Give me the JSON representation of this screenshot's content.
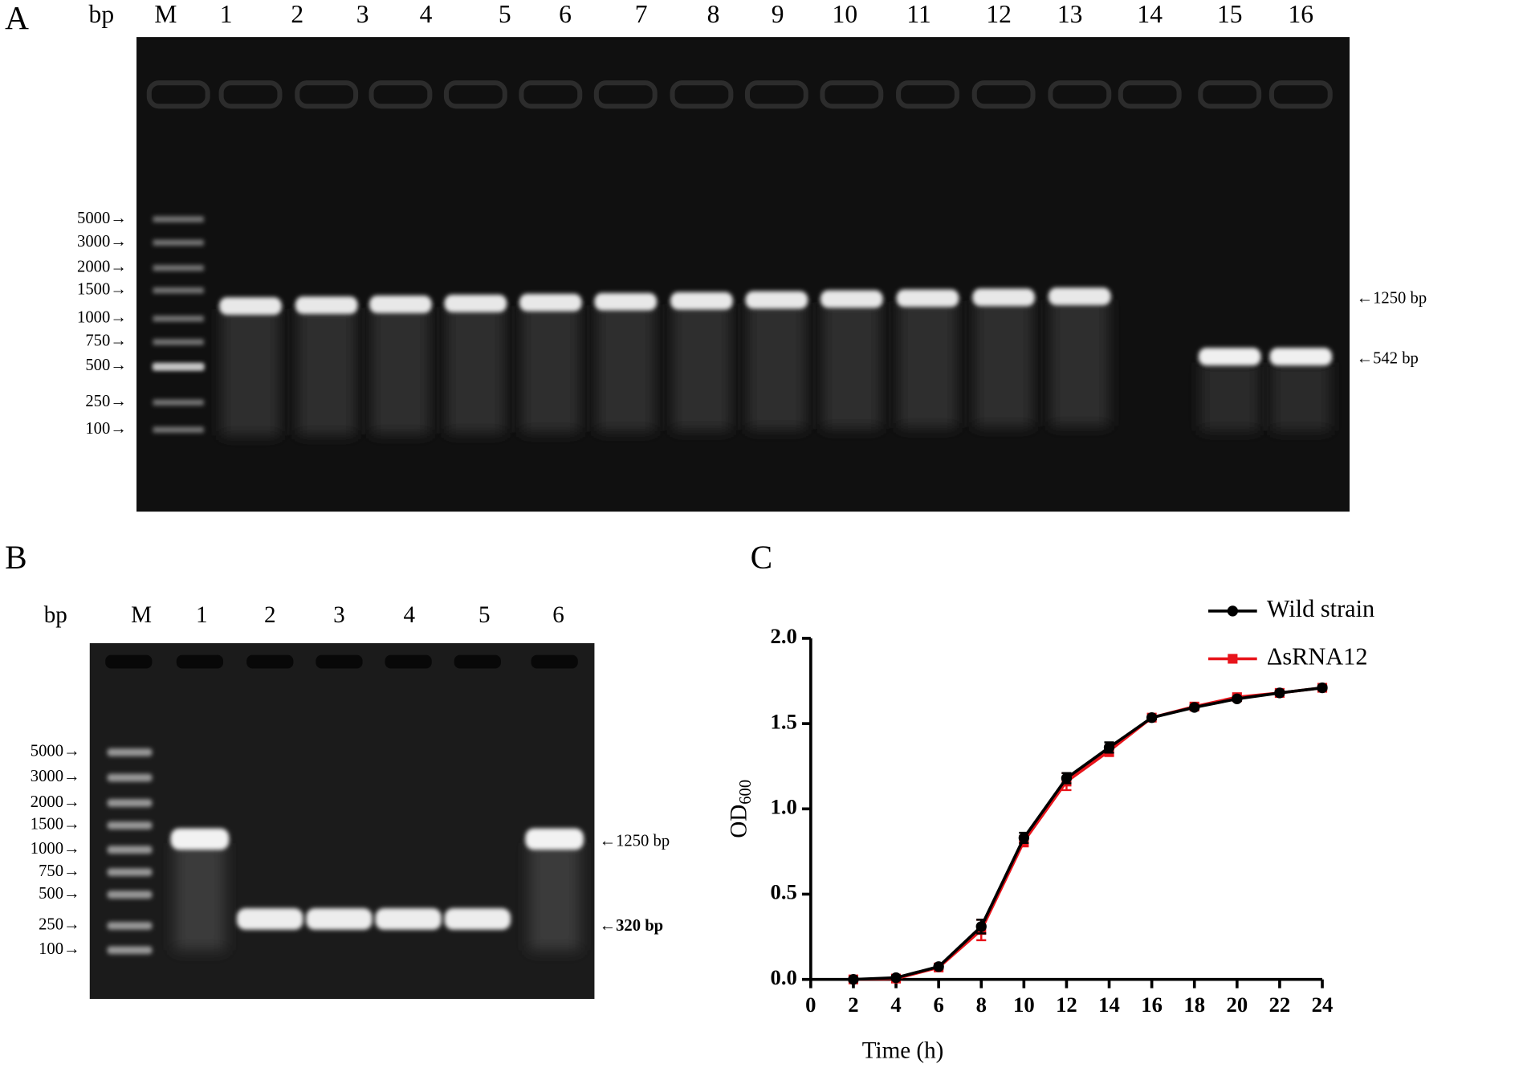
{
  "panel_a": {
    "label": "A",
    "unit": "bp",
    "lanes": [
      "M",
      "1",
      "2",
      "3",
      "4",
      "5",
      "6",
      "7",
      "8",
      "9",
      "10",
      "11",
      "12",
      "13",
      "14",
      "15",
      "16"
    ],
    "markers": [
      "5000→",
      "3000→",
      "2000→",
      "1500→",
      "1000→",
      "750→",
      "500→",
      "250→",
      "100→"
    ],
    "band_labels": [
      "←1250 bp",
      "←542 bp"
    ]
  },
  "panel_b": {
    "label": "B",
    "unit": "bp",
    "lanes": [
      "M",
      "1",
      "2",
      "3",
      "4",
      "5",
      "6"
    ],
    "markers": [
      "5000→",
      "3000→",
      "2000→",
      "1500→",
      "1000→",
      "750→",
      "500→",
      "250→",
      "100→"
    ],
    "band_labels": [
      "←1250 bp",
      "←320 bp"
    ]
  },
  "chart_data": {
    "type": "line",
    "label": "C",
    "xlabel": "Time (h)",
    "ylabel": {
      "main": "OD",
      "sub": "600"
    },
    "x": [
      2,
      4,
      6,
      8,
      10,
      12,
      14,
      16,
      18,
      20,
      22,
      24
    ],
    "xlim": [
      0,
      24
    ],
    "xticks": [
      0,
      2,
      4,
      6,
      8,
      10,
      12,
      14,
      16,
      18,
      20,
      22,
      24
    ],
    "ylim": [
      0,
      2
    ],
    "yticks": [
      {
        "value": 0,
        "label": "0.0"
      },
      0.5,
      {
        "value": 1,
        "label": "1.0"
      },
      1.5,
      {
        "value": 2,
        "label": "2.0"
      }
    ],
    "legend": "upper right",
    "series": [
      {
        "name": "Wild strain",
        "color": "#000000",
        "marker": "circle",
        "values": [
          0,
          0.01,
          0.075,
          0.31,
          0.83,
          1.18,
          1.36,
          1.535,
          1.595,
          1.645,
          1.68,
          1.71
        ],
        "errors": [
          0.01,
          0.01,
          0.01,
          0.04,
          0.03,
          0.03,
          0.03,
          0.01,
          0.01,
          0.01,
          0.01,
          0.01
        ]
      },
      {
        "name": "ΔsRNA12",
        "color": "#e8141b",
        "marker": "square",
        "values": [
          0,
          0.005,
          0.07,
          0.29,
          0.81,
          1.16,
          1.34,
          1.535,
          1.6,
          1.655,
          1.68,
          1.71
        ],
        "errors": [
          0.01,
          0.01,
          0.01,
          0.06,
          0.03,
          0.05,
          0.03,
          0.01,
          0.01,
          0.01,
          0.01,
          0.01
        ]
      }
    ]
  }
}
